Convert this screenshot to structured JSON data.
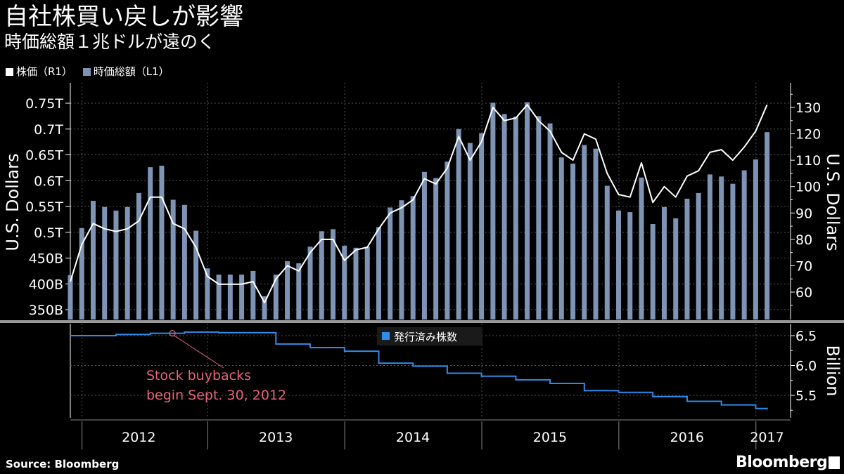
{
  "title": "自社株買い戻しが影響",
  "subtitle": "時価総額１兆ドルが遠のく",
  "legend": {
    "items": [
      {
        "label": "株価（R1）",
        "color": "#ffffff"
      },
      {
        "label": "時価総額（L1）",
        "color": "#7f93b5"
      }
    ]
  },
  "source": "Source: Bloomberg",
  "brand": "Bloomberg",
  "brand_badge": "㊊",
  "colors": {
    "background": "#000000",
    "bars": "#7f93b5",
    "price_line": "#ffffff",
    "shares_line": "#2f8be8",
    "annotation": "#e8647a",
    "grid": "#555555"
  },
  "chart_data": [
    {
      "type": "bar+line",
      "x_start": "2011-12",
      "x_interval": "month",
      "x_tick_labels": [
        "2012",
        "2013",
        "2014",
        "2015",
        "2016",
        "2017"
      ],
      "left_axis": {
        "label": "U.S. Dollars",
        "ticks": [
          "350B",
          "400B",
          "450B",
          "0.5T",
          "0.55T",
          "0.6T",
          "0.65T",
          "0.7T",
          "0.75T"
        ],
        "range": [
          335,
          760
        ],
        "unit": "billion USD"
      },
      "right_axis": {
        "label": "U.S. Dollars",
        "ticks": [
          "60",
          "70",
          "80",
          "90",
          "100",
          "110",
          "120",
          "130"
        ],
        "range": [
          50,
          135
        ]
      },
      "series": [
        {
          "name": "時価総額（L1）",
          "type": "bar",
          "axis": "left",
          "values": [
            417,
            508,
            561,
            549,
            542,
            549,
            576,
            626,
            629,
            563,
            553,
            503,
            430,
            418,
            418,
            418,
            425,
            376,
            418,
            444,
            440,
            472,
            502,
            506,
            474,
            470,
            472,
            510,
            548,
            562,
            570,
            617,
            605,
            637,
            700,
            673,
            692,
            751,
            729,
            724,
            752,
            725,
            711,
            645,
            633,
            669,
            662,
            590,
            542,
            539,
            606,
            516,
            549,
            527,
            565,
            576,
            612,
            608,
            594,
            620,
            641,
            694
          ]
        },
        {
          "name": "株価（R1）",
          "type": "line",
          "axis": "right",
          "values": [
            64,
            78,
            86,
            84,
            83,
            84,
            87,
            96,
            96,
            86,
            84,
            77,
            66,
            63,
            63,
            63,
            64,
            56,
            65,
            70,
            68,
            75,
            80,
            80,
            72,
            76,
            77,
            84,
            90,
            92,
            95,
            103,
            101,
            107,
            119,
            110,
            117,
            130,
            125,
            126,
            131,
            125,
            121,
            113,
            110,
            120,
            118,
            105,
            97,
            96,
            109,
            94,
            100,
            96,
            104,
            106,
            113,
            114,
            110,
            115,
            121,
            131
          ]
        }
      ]
    },
    {
      "type": "line",
      "legend": "発行済み株数",
      "right_axis": {
        "label": "Billion",
        "ticks": [
          "5.5",
          "6.0",
          "6.5"
        ],
        "range": [
          5.1,
          6.7
        ]
      },
      "series": [
        {
          "name": "発行済み株数",
          "type": "step",
          "values": [
            6.5,
            6.5,
            6.5,
            6.5,
            6.52,
            6.52,
            6.52,
            6.54,
            6.54,
            6.54,
            6.56,
            6.56,
            6.56,
            6.55,
            6.55,
            6.55,
            6.55,
            6.55,
            6.36,
            6.36,
            6.36,
            6.3,
            6.3,
            6.3,
            6.24,
            6.24,
            6.24,
            6.04,
            6.04,
            6.04,
            5.99,
            5.99,
            5.99,
            5.87,
            5.87,
            5.87,
            5.82,
            5.82,
            5.82,
            5.76,
            5.76,
            5.76,
            5.7,
            5.7,
            5.7,
            5.58,
            5.58,
            5.58,
            5.55,
            5.55,
            5.55,
            5.48,
            5.48,
            5.48,
            5.4,
            5.4,
            5.4,
            5.34,
            5.34,
            5.34,
            5.28,
            5.26
          ]
        }
      ],
      "annotation": {
        "lines": [
          "Stock buybacks",
          "begin Sept. 30, 2012"
        ],
        "x_index": 9
      }
    }
  ]
}
